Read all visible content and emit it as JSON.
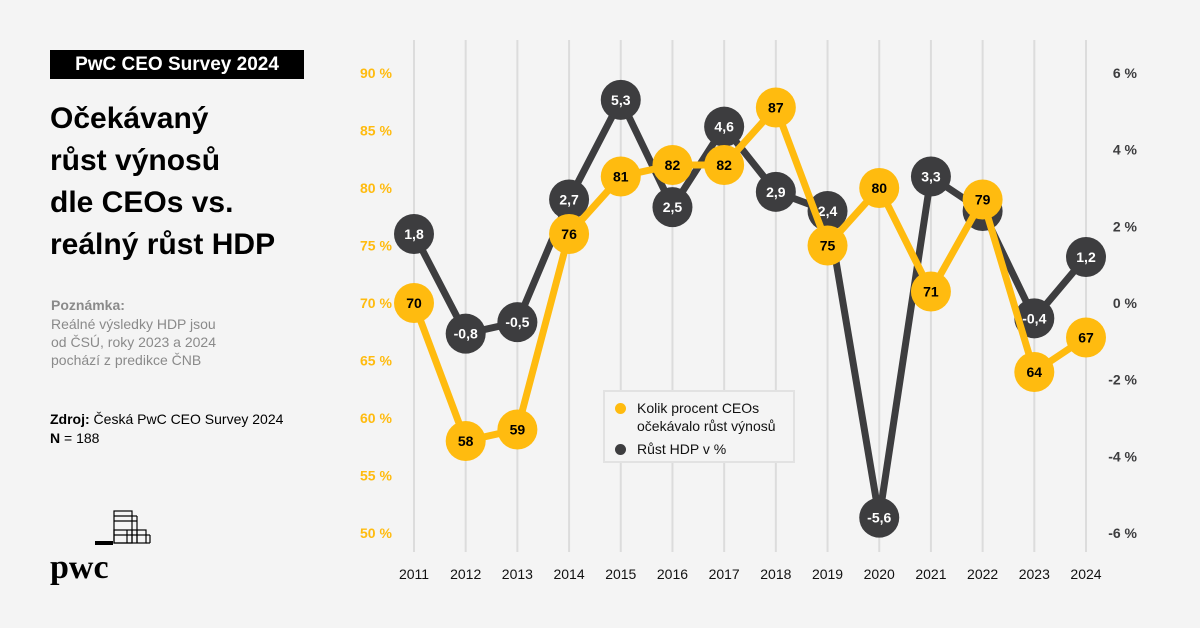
{
  "header": {
    "badge": "PwC CEO Survey 2024",
    "title_lines": [
      "Očekávaný",
      "růst výnosů",
      "dle CEOs vs.",
      "reálný růst HDP"
    ]
  },
  "note": {
    "heading": "Poznámka:",
    "lines": [
      "Reálné výsledky HDP jsou",
      "od ČSÚ, roky 2023 a 2024",
      "pochází z predikce ČNB"
    ]
  },
  "source": {
    "label": "Zdroj:",
    "text": " Česká PwC CEO Survey 2024",
    "n_label": "N",
    "n_text": " = 188"
  },
  "logo": {
    "text": "pwc",
    "icon": "pwc-logo-icon"
  },
  "colors": {
    "ceo": "#ffbb0f",
    "gdp": "#3d3d3f",
    "grid": "#dcdcdc",
    "background": "#f4f4f4"
  },
  "chart_data": {
    "type": "line",
    "title": "Očekávaný růst výnosů dle CEOs vs. reálný růst HDP",
    "x": [
      "2011",
      "2012",
      "2013",
      "2014",
      "2015",
      "2016",
      "2017",
      "2018",
      "2019",
      "2020",
      "2021",
      "2022",
      "2023",
      "2024"
    ],
    "series": [
      {
        "name": "Kolik procent CEOs očekávalo růst výnosů",
        "axis": "left",
        "values": [
          70,
          58,
          59,
          76,
          81,
          82,
          82,
          87,
          75,
          80,
          71,
          79,
          64,
          67
        ],
        "labels": [
          "70",
          "58",
          "59",
          "76",
          "81",
          "82",
          "82",
          "87",
          "75",
          "80",
          "71",
          "79",
          "64",
          "67"
        ]
      },
      {
        "name": "Růst HDP v %",
        "axis": "right",
        "values": [
          1.8,
          -0.8,
          -0.5,
          2.7,
          5.3,
          2.5,
          4.6,
          2.9,
          2.4,
          -5.6,
          3.3,
          2.4,
          -0.4,
          1.2
        ],
        "labels": [
          "1,8",
          "-0,8",
          "-0,5",
          "2,7",
          "5,3",
          "2,5",
          "4,6",
          "2,9",
          "2,4",
          "-5,6",
          "3,3",
          "2,4",
          "-0,4",
          "1,2"
        ]
      }
    ],
    "left_axis": {
      "ylim": [
        50,
        90
      ],
      "ticks": [
        "90 %",
        "85 %",
        "80 %",
        "75 %",
        "70 %",
        "65 %",
        "60 %",
        "55 %",
        "50 %"
      ],
      "tick_values": [
        90,
        85,
        80,
        75,
        70,
        65,
        60,
        55,
        50
      ]
    },
    "right_axis": {
      "ylim": [
        -6,
        6
      ],
      "ticks": [
        "6 %",
        "4 %",
        "2 %",
        "0 %",
        "-2 %",
        "-4 %",
        "-6 %"
      ],
      "tick_values": [
        6,
        4,
        2,
        0,
        -2,
        -4,
        -6
      ]
    },
    "grid": "vertical",
    "legend": {
      "position": "bottom-center",
      "items": [
        {
          "label_lines": [
            "Kolik procent CEOs",
            "očekávalo růst výnosů"
          ]
        },
        {
          "label_lines": [
            "Růst HDP v %"
          ]
        }
      ]
    }
  }
}
